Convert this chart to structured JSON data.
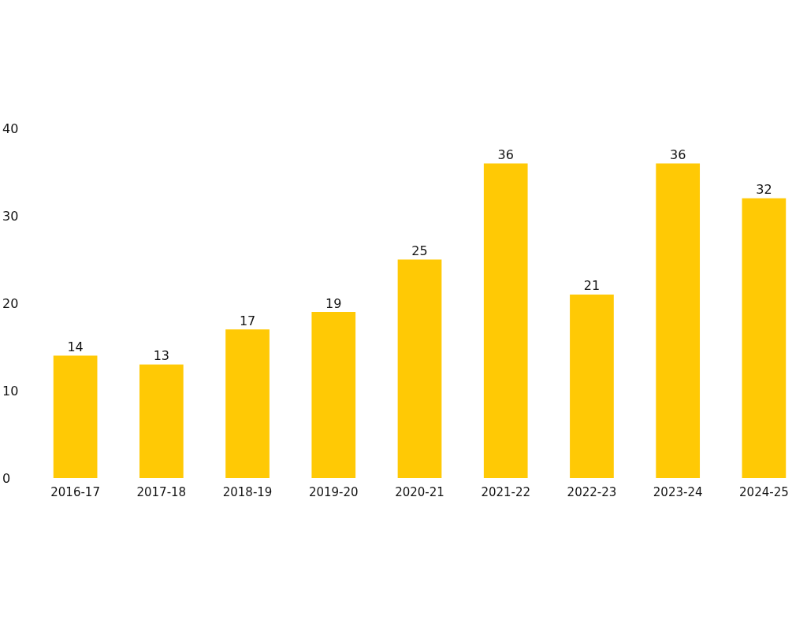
{
  "chart_data": {
    "type": "bar",
    "categories": [
      "2016-17",
      "2017-18",
      "2018-19",
      "2019-20",
      "2020-21",
      "2021-22",
      "2022-23",
      "2023-24",
      "2024-25"
    ],
    "values": [
      14,
      13,
      17,
      19,
      25,
      36,
      21,
      36,
      32
    ],
    "color": "#ffc905",
    "ylim": [
      0,
      40
    ],
    "yticks": [
      0,
      10,
      20,
      30,
      40
    ],
    "grid": false,
    "data_labels": true
  }
}
